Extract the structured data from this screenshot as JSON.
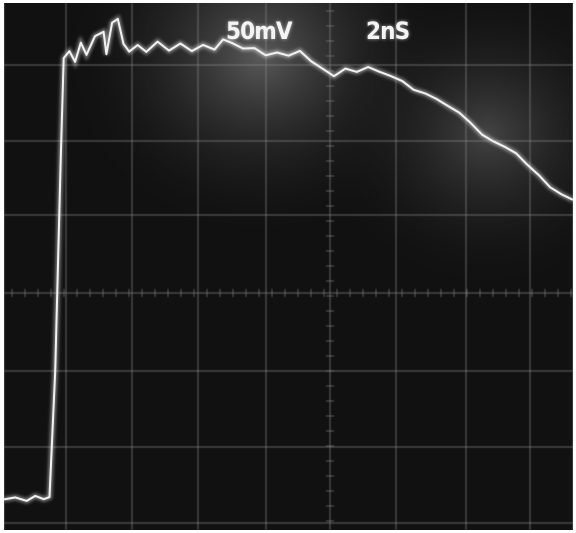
{
  "scope": {
    "volts_per_div": "50mV",
    "time_per_div": "2nS"
  },
  "colors": {
    "screen": "#111111",
    "grid": "#8a8a8a",
    "trace": "#f2f2f2"
  },
  "trace_samples": [
    [
      0.0,
      0.058
    ],
    [
      0.02,
      0.062
    ],
    [
      0.04,
      0.055
    ],
    [
      0.055,
      0.065
    ],
    [
      0.07,
      0.058
    ],
    [
      0.08,
      0.063
    ],
    [
      0.09,
      0.3
    ],
    [
      0.1,
      0.72
    ],
    [
      0.105,
      0.9
    ],
    [
      0.115,
      0.91
    ],
    [
      0.125,
      0.885
    ],
    [
      0.135,
      0.92
    ],
    [
      0.145,
      0.9
    ],
    [
      0.16,
      0.94
    ],
    [
      0.175,
      0.95
    ],
    [
      0.18,
      0.905
    ],
    [
      0.19,
      0.96
    ],
    [
      0.2,
      0.965
    ],
    [
      0.21,
      0.92
    ],
    [
      0.22,
      0.91
    ],
    [
      0.235,
      0.925
    ],
    [
      0.25,
      0.91
    ],
    [
      0.27,
      0.925
    ],
    [
      0.29,
      0.905
    ],
    [
      0.31,
      0.92
    ],
    [
      0.33,
      0.91
    ],
    [
      0.35,
      0.925
    ],
    [
      0.37,
      0.915
    ],
    [
      0.385,
      0.93
    ],
    [
      0.4,
      0.92
    ],
    [
      0.42,
      0.91
    ],
    [
      0.44,
      0.915
    ],
    [
      0.46,
      0.905
    ],
    [
      0.48,
      0.91
    ],
    [
      0.5,
      0.9
    ],
    [
      0.52,
      0.905
    ],
    [
      0.54,
      0.885
    ],
    [
      0.56,
      0.875
    ],
    [
      0.58,
      0.865
    ],
    [
      0.6,
      0.88
    ],
    [
      0.62,
      0.87
    ],
    [
      0.64,
      0.875
    ],
    [
      0.66,
      0.865
    ],
    [
      0.68,
      0.86
    ],
    [
      0.7,
      0.855
    ],
    [
      0.72,
      0.84
    ],
    [
      0.74,
      0.83
    ],
    [
      0.76,
      0.815
    ],
    [
      0.78,
      0.8
    ],
    [
      0.8,
      0.79
    ],
    [
      0.82,
      0.775
    ],
    [
      0.84,
      0.755
    ],
    [
      0.86,
      0.74
    ],
    [
      0.88,
      0.725
    ],
    [
      0.9,
      0.71
    ],
    [
      0.92,
      0.69
    ],
    [
      0.94,
      0.675
    ],
    [
      0.96,
      0.655
    ],
    [
      0.98,
      0.64
    ],
    [
      1.0,
      0.625
    ]
  ]
}
